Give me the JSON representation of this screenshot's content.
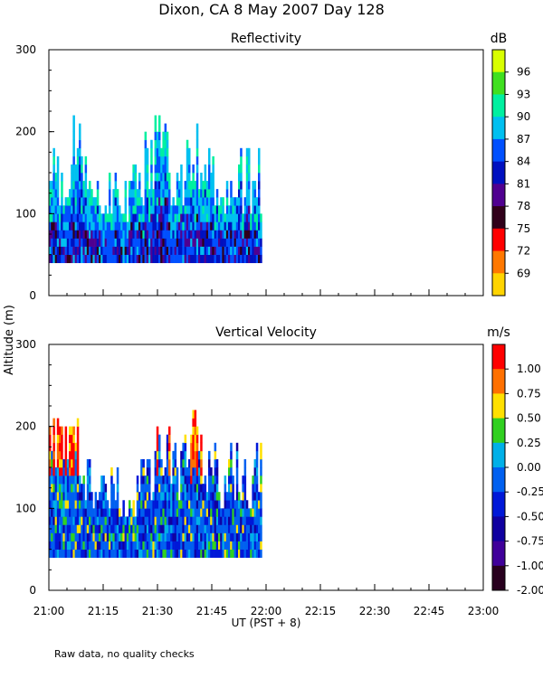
{
  "title": "Dixon, CA  8 May 2007  Day 128",
  "footer_note": "Raw data, no quality checks",
  "shared_ylabel": "Altitude (m)",
  "shared_xlabel": "UT  (PST + 8)",
  "chart_data": [
    {
      "type": "heatmap",
      "title": "Reflectivity",
      "units": "dB",
      "xlim": [
        "21:00",
        "23:00"
      ],
      "x_ticks": [
        "21:00",
        "21:15",
        "21:30",
        "21:45",
        "22:00",
        "22:15",
        "22:30",
        "22:45",
        "23:00"
      ],
      "ylim": [
        0,
        300
      ],
      "y_ticks": [
        0,
        100,
        200,
        300
      ],
      "data_x_range": [
        "21:00",
        "21:59"
      ],
      "lowest_range_gate_m": 40,
      "colorbar": {
        "tick_labels": [
          "69",
          "72",
          "75",
          "78",
          "81",
          "84",
          "87",
          "90",
          "93",
          "96"
        ],
        "colors": [
          "#d8ff00",
          "#40e020",
          "#00f0a0",
          "#00c0f0",
          "#0050ff",
          "#0010c0",
          "#500090",
          "#30001a",
          "#ff0000",
          "#ff7800",
          "#ffd400"
        ]
      },
      "echo_top_profile_m": [
        {
          "t": "21:00",
          "top": 200
        },
        {
          "t": "21:03",
          "top": 180
        },
        {
          "t": "21:05",
          "top": 200
        },
        {
          "t": "21:06",
          "top": 220
        },
        {
          "t": "21:07",
          "top": 220
        },
        {
          "t": "21:09",
          "top": 200
        },
        {
          "t": "21:12",
          "top": 160
        },
        {
          "t": "21:17",
          "top": 140
        },
        {
          "t": "21:24",
          "top": 160
        },
        {
          "t": "21:27",
          "top": 200
        },
        {
          "t": "21:31",
          "top": 220
        },
        {
          "t": "21:35",
          "top": 160
        },
        {
          "t": "21:39",
          "top": 220
        },
        {
          "t": "21:42",
          "top": 200
        },
        {
          "t": "21:47",
          "top": 180
        },
        {
          "t": "21:53",
          "top": 180
        },
        {
          "t": "21:58",
          "top": 180
        }
      ]
    },
    {
      "type": "heatmap",
      "title": "Vertical Velocity",
      "units": "m/s",
      "xlim": [
        "21:00",
        "23:00"
      ],
      "x_ticks": [
        "21:00",
        "21:15",
        "21:30",
        "21:45",
        "22:00",
        "22:15",
        "22:30",
        "22:45",
        "23:00"
      ],
      "ylim": [
        0,
        300
      ],
      "y_ticks": [
        0,
        100,
        200,
        300
      ],
      "data_x_range": [
        "21:00",
        "21:59"
      ],
      "lowest_range_gate_m": 40,
      "colorbar": {
        "tick_labels": [
          "1.00",
          "0.75",
          "0.50",
          "0.25",
          "0.00",
          "-0.25",
          "-0.50",
          "-0.75",
          "-1.00",
          "-2.00"
        ],
        "colors": [
          "#ff0000",
          "#ff7000",
          "#ffe000",
          "#30d020",
          "#00b0e8",
          "#0060f0",
          "#0018d8",
          "#1000a0",
          "#40009a",
          "#28001e"
        ]
      },
      "echo_top_profile_m": [
        {
          "t": "21:00",
          "top": 200
        },
        {
          "t": "21:05",
          "top": 220
        },
        {
          "t": "21:07",
          "top": 220
        },
        {
          "t": "21:10",
          "top": 160
        },
        {
          "t": "21:20",
          "top": 140
        },
        {
          "t": "21:28",
          "top": 160
        },
        {
          "t": "21:31",
          "top": 220
        },
        {
          "t": "21:36",
          "top": 160
        },
        {
          "t": "21:40",
          "top": 220
        },
        {
          "t": "21:45",
          "top": 180
        },
        {
          "t": "21:52",
          "top": 180
        },
        {
          "t": "21:57",
          "top": 180
        }
      ]
    }
  ]
}
